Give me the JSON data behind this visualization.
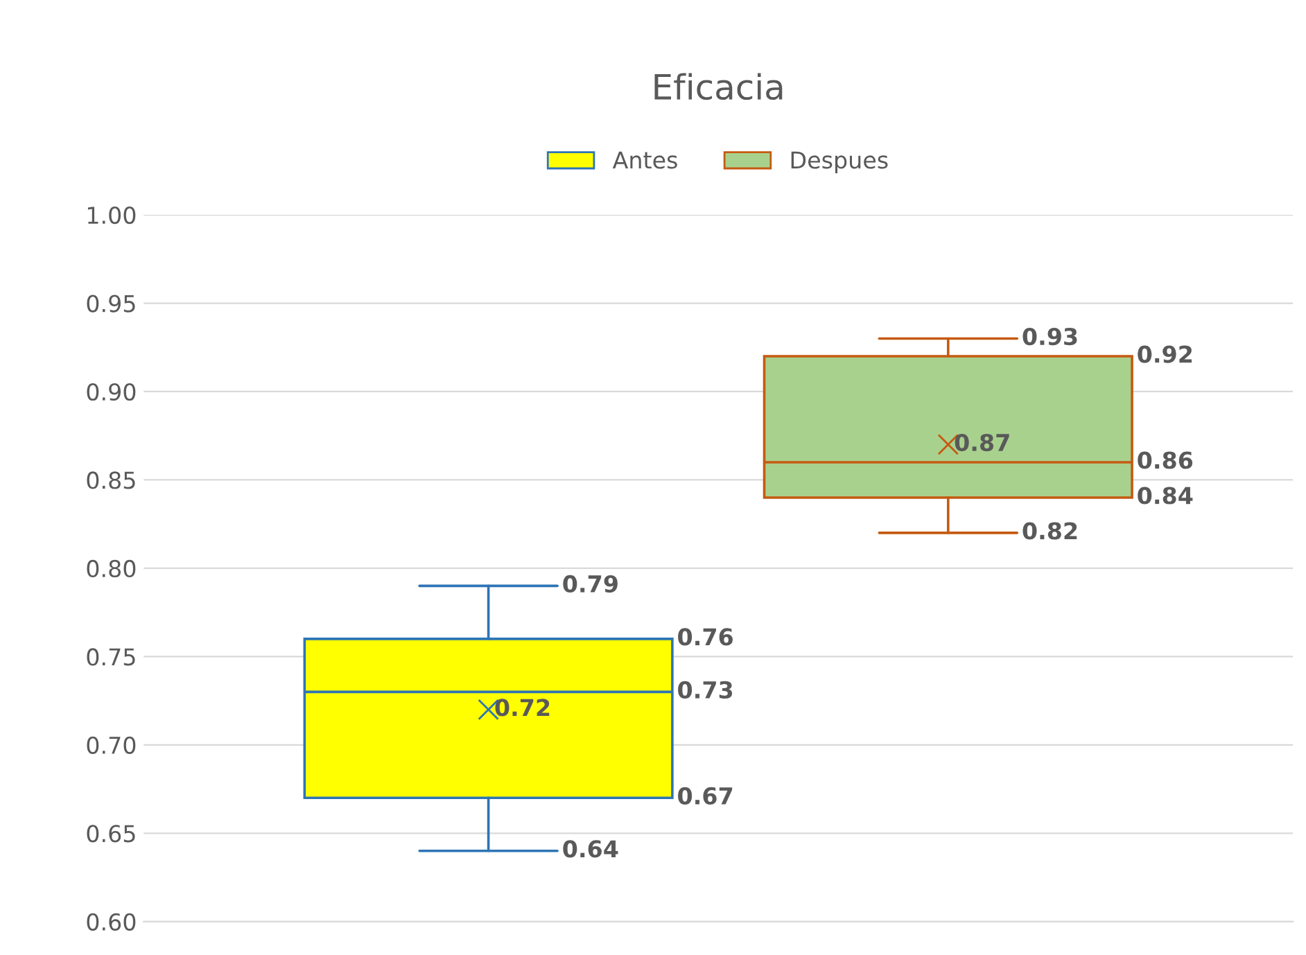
{
  "chart_data": {
    "type": "box",
    "title": "Eficacia",
    "categories": [
      null
    ],
    "series": [
      {
        "name": "Antes",
        "color": "#ffff00",
        "boxes": [
          {
            "low": 0.64,
            "q1": 0.67,
            "median": 0.73,
            "q3": 0.76,
            "high": 0.79,
            "mean": 0.72
          }
        ]
      },
      {
        "name": "Despues",
        "color": "#a9d18e",
        "boxes": [
          {
            "low": 0.82,
            "q1": 0.84,
            "median": 0.86,
            "q3": 0.92,
            "high": 0.93,
            "mean": 0.87
          }
        ]
      }
    ],
    "ylim": [
      0.6,
      1.0
    ],
    "yticks": [
      {
        "value": 0.6,
        "label": "0.60"
      },
      {
        "value": 0.65,
        "label": "0.65"
      },
      {
        "value": 0.7,
        "label": "0.70"
      },
      {
        "value": 0.75,
        "label": "0.75"
      },
      {
        "value": 0.8,
        "label": "0.80"
      },
      {
        "value": 0.85,
        "label": "0.85"
      },
      {
        "value": 0.9,
        "label": "0.90"
      },
      {
        "value": 0.95,
        "label": "0.95"
      },
      {
        "value": 1.0,
        "label": "1.00"
      }
    ],
    "grid": "y",
    "legend": "top",
    "tick_labels": "y",
    "annotations": [
      {
        "text": "0.79",
        "y": 0.79
      },
      {
        "text": "0.76",
        "y": 0.76
      },
      {
        "text": "0.73",
        "y": 0.73
      },
      "0.72",
      {
        "text": "0.67",
        "y": 0.67
      },
      {
        "text": "0.64",
        "y": 0.64
      },
      {
        "text": "0.93",
        "y": 0.93
      },
      {
        "text": "0.92",
        "y": 0.92
      },
      "0.87",
      {
        "text": "0.86",
        "y": 0.86
      },
      {
        "text": "0.84",
        "y": 0.84
      },
      {
        "text": "0.82",
        "y": 0.82
      }
    ]
  }
}
